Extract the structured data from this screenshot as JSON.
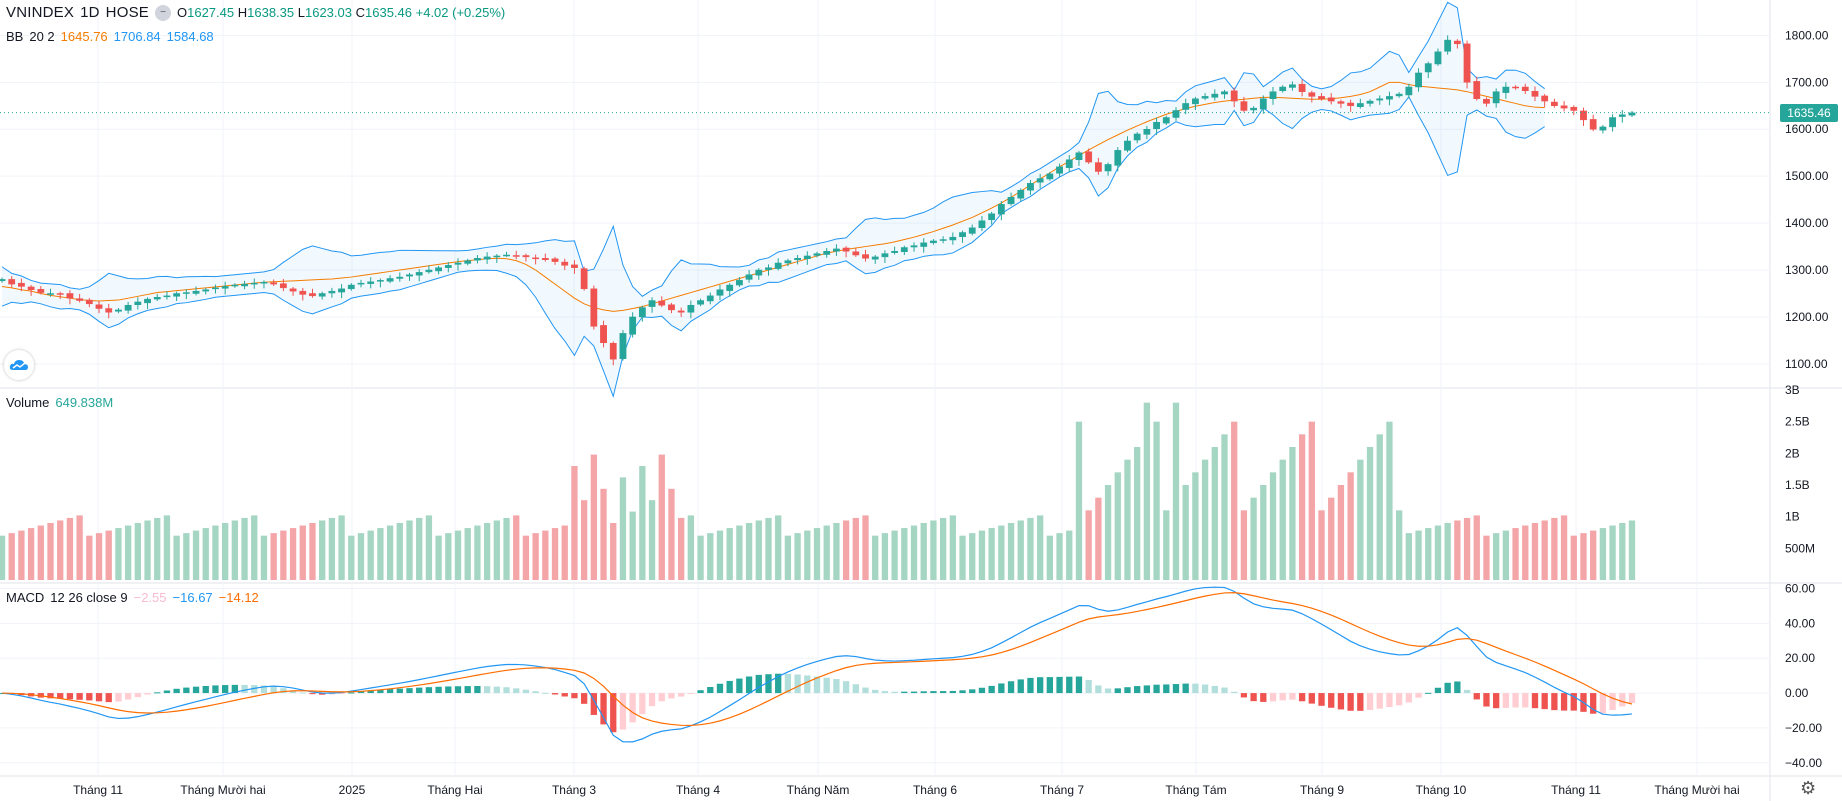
{
  "header": {
    "symbol": "VNINDEX",
    "interval": "1D",
    "exchange": "HOSE",
    "ohlc": {
      "o_label": "O",
      "o": "1627.45",
      "h_label": "H",
      "h": "1638.35",
      "l_label": "L",
      "l": "1623.03",
      "c_label": "C",
      "c": "1635.46",
      "change": "+4.02 (+0.25%)"
    }
  },
  "bb_legend": {
    "name": "BB",
    "params": "20 2",
    "mid": "1645.76",
    "upper": "1706.84",
    "lower": "1584.68"
  },
  "volume_legend": {
    "name": "Volume",
    "value": "649.838M"
  },
  "macd_legend": {
    "name": "MACD",
    "params": "12 26 close 9",
    "hist": "−2.55",
    "macd": "−16.67",
    "signal": "−14.12"
  },
  "last_price_tag": "1635.46",
  "colors": {
    "up": "#26a69a",
    "down": "#ef5350",
    "bb_mid": "#f57c00",
    "bb_band": "#2196f3",
    "vol_up": "#a5d6c3",
    "vol_down": "#f4a5a8",
    "macd": "#2196f3",
    "signal": "#ff6d00"
  },
  "chart_data": [
    {
      "type": "line",
      "title": "VNINDEX 1D HOSE",
      "y_ticks": [
        "1100.00",
        "1200.00",
        "1300.00",
        "1400.00",
        "1500.00",
        "1600.00",
        "1700.00",
        "1800.00"
      ],
      "ylim": [
        1055,
        1820
      ],
      "x_ticks": [
        "Tháng 11",
        "Tháng Mười hai",
        "2025",
        "Tháng Hai",
        "Tháng 3",
        "Tháng 4",
        "Tháng Năm",
        "Tháng 6",
        "Tháng 7",
        "Tháng Tám",
        "Tháng 9",
        "Tháng 10",
        "Tháng 11",
        "Tháng Mười hai"
      ],
      "series": [
        {
          "name": "Close",
          "values": [
            1280,
            1270,
            1265,
            1258,
            1252,
            1250,
            1248,
            1240,
            1235,
            1228,
            1218,
            1210,
            1215,
            1225,
            1232,
            1238,
            1242,
            1245,
            1250,
            1252,
            1255,
            1258,
            1262,
            1265,
            1268,
            1270,
            1272,
            1274,
            1270,
            1262,
            1255,
            1248,
            1245,
            1250,
            1255,
            1260,
            1268,
            1272,
            1275,
            1278,
            1282,
            1285,
            1290,
            1295,
            1300,
            1305,
            1310,
            1315,
            1320,
            1325,
            1328,
            1330,
            1332,
            1330,
            1328,
            1325,
            1322,
            1318,
            1310,
            1305,
            1260,
            1180,
            1145,
            1110,
            1165,
            1200,
            1220,
            1235,
            1225,
            1215,
            1210,
            1225,
            1235,
            1245,
            1258,
            1268,
            1278,
            1290,
            1300,
            1305,
            1315,
            1320,
            1325,
            1330,
            1335,
            1340,
            1345,
            1340,
            1332,
            1325,
            1328,
            1335,
            1340,
            1348,
            1352,
            1358,
            1362,
            1365,
            1370,
            1380,
            1390,
            1405,
            1420,
            1440,
            1455,
            1470,
            1485,
            1495,
            1505,
            1520,
            1535,
            1550,
            1530,
            1510,
            1525,
            1555,
            1575,
            1590,
            1600,
            1615,
            1625,
            1640,
            1655,
            1665,
            1670,
            1675,
            1680,
            1660,
            1640,
            1645,
            1665,
            1680,
            1690,
            1695,
            1680,
            1670,
            1665,
            1660,
            1655,
            1650,
            1655,
            1660,
            1665,
            1670,
            1675,
            1690,
            1720,
            1740,
            1765,
            1790,
            1782,
            1700,
            1665,
            1655,
            1680,
            1690,
            1688,
            1682,
            1670,
            1660,
            1650,
            1645,
            1640,
            1620,
            1600,
            1605,
            1625,
            1631,
            1635
          ]
        },
        {
          "name": "BB mid",
          "values": [
            1265,
            1262,
            1258,
            1255,
            1250,
            1246,
            1243,
            1240,
            1237,
            1235,
            1234,
            1235,
            1236,
            1240,
            1244,
            1248,
            1252,
            1254,
            1256,
            1258,
            1260,
            1262,
            1264,
            1266,
            1268,
            1270,
            1272,
            1274,
            1275,
            1276,
            1277,
            1278,
            1279,
            1280,
            1281,
            1283,
            1285,
            1288,
            1291,
            1294,
            1297,
            1300,
            1303,
            1306,
            1309,
            1312,
            1315,
            1318,
            1320,
            1322,
            1324,
            1325,
            1324,
            1320,
            1312,
            1300,
            1285,
            1270,
            1255,
            1240,
            1228,
            1220,
            1215,
            1212,
            1214,
            1218,
            1222,
            1228,
            1234,
            1240,
            1246,
            1252,
            1258,
            1264,
            1270,
            1276,
            1282,
            1288,
            1294,
            1300,
            1306,
            1312,
            1318,
            1324,
            1330,
            1336,
            1340,
            1344,
            1347,
            1350,
            1353,
            1356,
            1360,
            1365,
            1370,
            1376,
            1382,
            1389,
            1396,
            1404,
            1412,
            1422,
            1432,
            1443,
            1455,
            1468,
            1481,
            1494,
            1507,
            1520,
            1532,
            1544,
            1556,
            1567,
            1578,
            1588,
            1598,
            1607,
            1616,
            1624,
            1632,
            1638,
            1644,
            1649,
            1653,
            1657,
            1660,
            1662,
            1664,
            1666,
            1668,
            1668,
            1667,
            1666,
            1665,
            1664,
            1664,
            1665,
            1667,
            1670,
            1674,
            1680,
            1690,
            1700,
            1700,
            1695,
            1692,
            1690,
            1688,
            1686,
            1684,
            1680,
            1675,
            1670,
            1665,
            1660,
            1655,
            1650,
            1647,
            1646
          ]
        }
      ]
    },
    {
      "type": "bar",
      "title": "Volume",
      "y_ticks": [
        "500M",
        "1B",
        "1.5B",
        "2B",
        "2.5B",
        "3B"
      ],
      "ylim": [
        0,
        3000
      ],
      "unit": "M"
    },
    {
      "type": "line",
      "title": "MACD 12 26 close 9",
      "y_ticks": [
        "−40.00",
        "−20.00",
        "0.00",
        "20.00",
        "40.00",
        "60.00"
      ],
      "ylim": [
        -47,
        62
      ]
    }
  ]
}
